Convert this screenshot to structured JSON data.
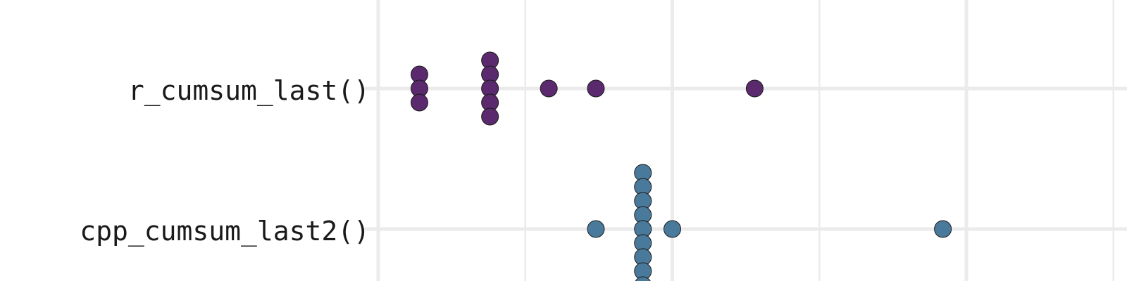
{
  "chart_data": {
    "type": "scatter",
    "subtype": "beeswarm",
    "orientation": "horizontal",
    "categories": [
      "r_cumsum_last()",
      "cpp_cumsum_last2()"
    ],
    "xlim": [
      0,
      2.4
    ],
    "grid": true,
    "legend": "none",
    "series": [
      {
        "category": "r_cumsum_last()",
        "color": "#5b2a6e",
        "values": [
          0.07,
          0.07,
          0.07,
          0.19,
          0.19,
          0.19,
          0.19,
          0.19,
          0.29,
          0.37,
          0.64
        ]
      },
      {
        "category": "cpp_cumsum_last2()",
        "color": "#4a7a9b",
        "values": [
          0.37,
          0.45,
          0.45,
          0.45,
          0.45,
          0.45,
          0.45,
          0.45,
          0.45,
          0.45,
          0.5,
          0.96
        ]
      }
    ]
  }
}
